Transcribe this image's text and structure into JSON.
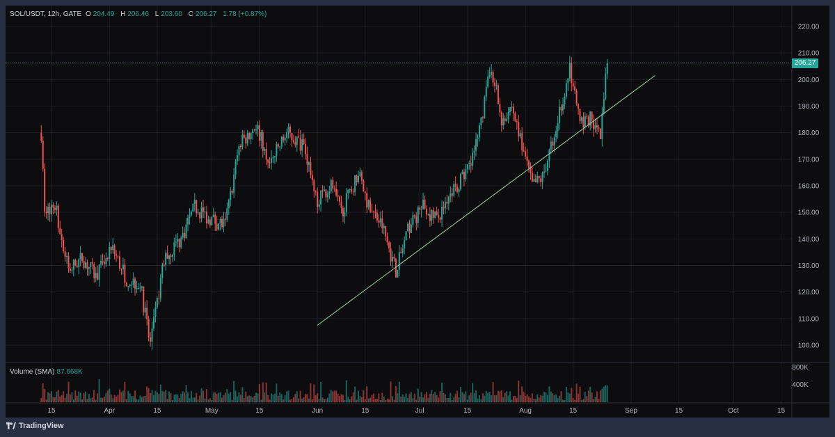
{
  "header": {
    "symbol": "SOL/USDT, 12h, GATE",
    "open_label": "O",
    "open": "204.49",
    "high_label": "H",
    "high": "206.46",
    "low_label": "L",
    "low": "203.60",
    "close_label": "C",
    "close": "206.27",
    "change": "1.78 (+0.87%)"
  },
  "last_price_tag": "206.27",
  "volume_pane": {
    "label": "Volume (SMA)",
    "value": "87.668K",
    "axis_ticks": [
      "800K",
      "400K"
    ]
  },
  "brand": {
    "name": "TradingView",
    "icon": "tradingview-logo-icon"
  },
  "colors": {
    "up": "#26a69a",
    "down": "#ef5350",
    "trendline": "#a5d6a7",
    "background": "#0d0d0f",
    "frame": "#263040"
  },
  "chart_data": {
    "type": "candlestick",
    "symbol": "SOL/USDT",
    "interval": "12h",
    "exchange": "GATE",
    "price_axis_ticks": [
      "100.00",
      "110.00",
      "120.00",
      "130.00",
      "140.00",
      "150.00",
      "160.00",
      "170.00",
      "180.00",
      "190.00",
      "200.00",
      "210.00",
      "220.00"
    ],
    "ylim": [
      95,
      225
    ],
    "time_axis_ticks": [
      "15",
      "Apr",
      "15",
      "May",
      "15",
      "Jun",
      "15",
      "Jul",
      "15",
      "Aug",
      "15",
      "Sep",
      "15",
      "Oct",
      "15"
    ],
    "anchor_points": [
      {
        "date": "Mar 12",
        "close": 180
      },
      {
        "date": "Mar 13",
        "close": 150
      },
      {
        "date": "Mar 16",
        "close": 153
      },
      {
        "date": "Mar 20",
        "close": 128
      },
      {
        "date": "Mar 24",
        "close": 133
      },
      {
        "date": "Mar 28",
        "close": 126
      },
      {
        "date": "Apr 2",
        "close": 136
      },
      {
        "date": "Apr 6",
        "close": 125
      },
      {
        "date": "Apr 10",
        "close": 123
      },
      {
        "date": "Apr 13",
        "close": 100
      },
      {
        "date": "Apr 17",
        "close": 132
      },
      {
        "date": "Apr 22",
        "close": 140
      },
      {
        "date": "Apr 26",
        "close": 152
      },
      {
        "date": "Apr 30",
        "close": 148
      },
      {
        "date": "May 5",
        "close": 145
      },
      {
        "date": "May 9",
        "close": 175
      },
      {
        "date": "May 14",
        "close": 183
      },
      {
        "date": "May 18",
        "close": 168
      },
      {
        "date": "May 23",
        "close": 180
      },
      {
        "date": "May 28",
        "close": 175
      },
      {
        "date": "Jun 1",
        "close": 155
      },
      {
        "date": "Jun 5",
        "close": 160
      },
      {
        "date": "Jun 8",
        "close": 150
      },
      {
        "date": "Jun 13",
        "close": 165
      },
      {
        "date": "Jun 16",
        "close": 152
      },
      {
        "date": "Jun 20",
        "close": 145
      },
      {
        "date": "Jun 24",
        "close": 128
      },
      {
        "date": "Jun 28",
        "close": 145
      },
      {
        "date": "Jul 2",
        "close": 152
      },
      {
        "date": "Jul 6",
        "close": 147
      },
      {
        "date": "Jul 10",
        "close": 158
      },
      {
        "date": "Jul 14",
        "close": 163
      },
      {
        "date": "Jul 18",
        "close": 178
      },
      {
        "date": "Jul 22",
        "close": 205
      },
      {
        "date": "Jul 25",
        "close": 185
      },
      {
        "date": "Jul 28",
        "close": 190
      },
      {
        "date": "Aug 3",
        "close": 160
      },
      {
        "date": "Aug 6",
        "close": 163
      },
      {
        "date": "Aug 10",
        "close": 182
      },
      {
        "date": "Aug 14",
        "close": 205
      },
      {
        "date": "Aug 17",
        "close": 183
      },
      {
        "date": "Aug 20",
        "close": 185
      },
      {
        "date": "Aug 23",
        "close": 178
      },
      {
        "date": "Aug 25",
        "close": 206.27
      }
    ],
    "trendline": [
      {
        "date": "Jun 1",
        "price": 107.5
      },
      {
        "date": "Sep 8",
        "price": 201.5
      }
    ],
    "last_close": 206.27,
    "volume_axis_range": [
      0,
      900000
    ]
  }
}
